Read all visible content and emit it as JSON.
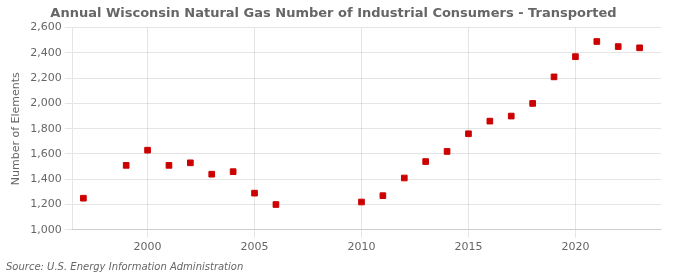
{
  "chart_data": {
    "type": "scatter",
    "title": "Annual Wisconsin Natural Gas Number of Industrial Consumers - Transported",
    "ylabel": "Number of Elements",
    "annotation": "Source: U.S. Energy Information Administration",
    "x": [
      1997,
      1999,
      2000,
      2001,
      2002,
      2003,
      2004,
      2005,
      2006,
      2010,
      2011,
      2012,
      2013,
      2014,
      2015,
      2016,
      2017,
      2018,
      2019,
      2020,
      2021,
      2022,
      2023
    ],
    "values": [
      1250,
      1510,
      1630,
      1510,
      1530,
      1440,
      1460,
      1290,
      1200,
      1220,
      1270,
      1410,
      1540,
      1620,
      1760,
      1860,
      1900,
      2000,
      2210,
      2370,
      2490,
      2450,
      2440
    ],
    "color": "#cc0000",
    "marker": "square",
    "xlim": [
      1996.5,
      2024
    ],
    "xticks": [
      2000,
      2005,
      2010,
      2015,
      2020
    ],
    "ylim": [
      1000,
      2600
    ],
    "yticks": [
      {
        "value": 1000,
        "label": "1,000"
      },
      {
        "value": 1200,
        "label": "1,200"
      },
      {
        "value": 1400,
        "label": "1,400"
      },
      {
        "value": 1600,
        "label": "1,600"
      },
      {
        "value": 1800,
        "label": "1,800"
      },
      {
        "value": 2000,
        "label": "2,000"
      },
      {
        "value": 2200,
        "label": "2,200"
      },
      {
        "value": 2400,
        "label": "2,400"
      },
      {
        "value": 2600,
        "label": "2,600"
      }
    ],
    "grid": true
  }
}
